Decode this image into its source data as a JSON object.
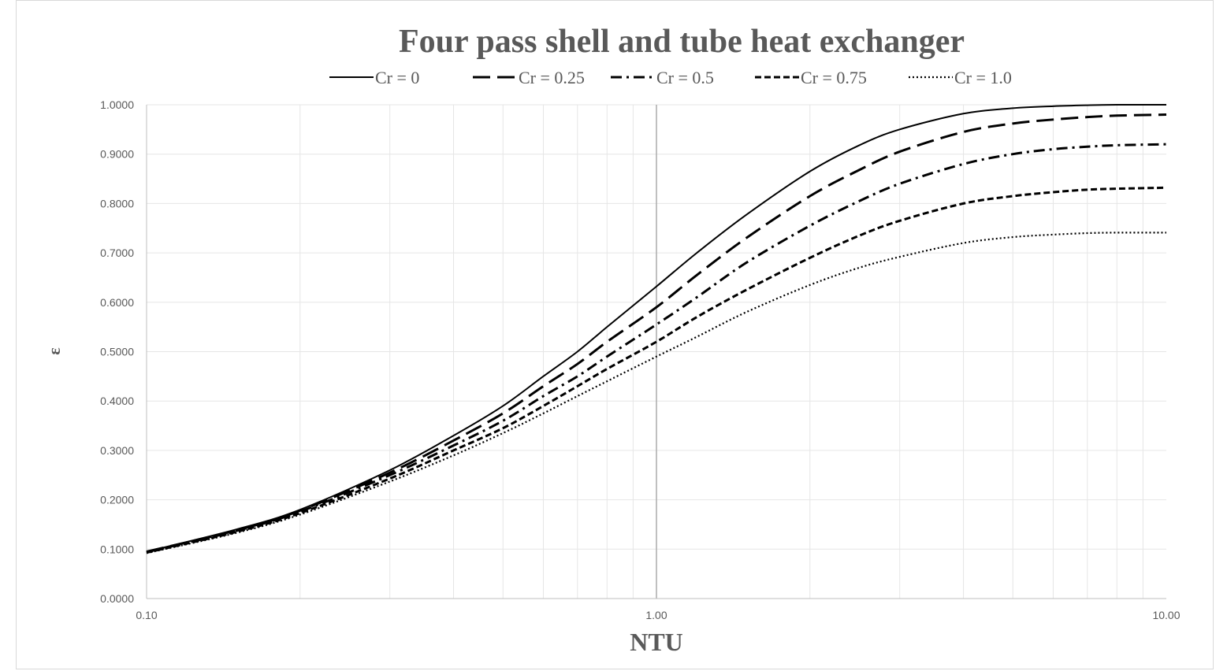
{
  "chart_data": {
    "type": "line",
    "title": "Four pass shell and tube heat exchanger",
    "xlabel": "NTU",
    "ylabel": "ε",
    "x_scale": "log",
    "xlim": [
      0.1,
      10
    ],
    "ylim": [
      0,
      1
    ],
    "x_ticks": [
      "0.10",
      "1.00",
      "10.00"
    ],
    "y_ticks": [
      "0.0000",
      "0.1000",
      "0.2000",
      "0.3000",
      "0.4000",
      "0.5000",
      "0.6000",
      "0.7000",
      "0.8000",
      "0.9000",
      "1.0000"
    ],
    "grid": true,
    "legend_position": "top",
    "x": [
      0.1,
      0.15,
      0.2,
      0.3,
      0.4,
      0.5,
      0.6,
      0.7,
      0.8,
      1.0,
      1.2,
      1.5,
      2.0,
      2.5,
      3.0,
      4.0,
      5.0,
      6.0,
      7.0,
      8.0,
      10.0
    ],
    "series": [
      {
        "name": "Cr = 0",
        "dash": "solid",
        "values": [
          0.095,
          0.14,
          0.18,
          0.26,
          0.33,
          0.39,
          0.45,
          0.5,
          0.55,
          0.632,
          0.7,
          0.777,
          0.865,
          0.918,
          0.95,
          0.982,
          0.993,
          0.997,
          0.999,
          1.0,
          1.0
        ]
      },
      {
        "name": "Cr = 0.25",
        "dash": "long-dash",
        "values": [
          0.095,
          0.138,
          0.178,
          0.255,
          0.32,
          0.375,
          0.43,
          0.475,
          0.52,
          0.59,
          0.655,
          0.73,
          0.815,
          0.868,
          0.905,
          0.945,
          0.962,
          0.97,
          0.975,
          0.978,
          0.98
        ]
      },
      {
        "name": "Cr = 0.5",
        "dash": "dash-dot",
        "values": [
          0.094,
          0.137,
          0.176,
          0.25,
          0.31,
          0.36,
          0.41,
          0.45,
          0.49,
          0.555,
          0.61,
          0.68,
          0.755,
          0.805,
          0.84,
          0.88,
          0.9,
          0.91,
          0.915,
          0.918,
          0.92
        ]
      },
      {
        "name": "Cr = 0.75",
        "dash": "short-dash",
        "values": [
          0.093,
          0.135,
          0.173,
          0.243,
          0.3,
          0.345,
          0.39,
          0.43,
          0.465,
          0.52,
          0.57,
          0.625,
          0.69,
          0.735,
          0.765,
          0.8,
          0.815,
          0.823,
          0.828,
          0.83,
          0.832
        ]
      },
      {
        "name": "Cr = 1.0",
        "dash": "dotted",
        "values": [
          0.092,
          0.133,
          0.17,
          0.237,
          0.29,
          0.335,
          0.375,
          0.41,
          0.44,
          0.49,
          0.53,
          0.58,
          0.635,
          0.67,
          0.692,
          0.72,
          0.732,
          0.737,
          0.74,
          0.741,
          0.741
        ]
      }
    ],
    "colors": {
      "lines": "#000000",
      "text": "#595959",
      "grid": "#e6e6e6",
      "axis": "#bfbfbf",
      "reference_line": "#a6a6a6"
    }
  }
}
